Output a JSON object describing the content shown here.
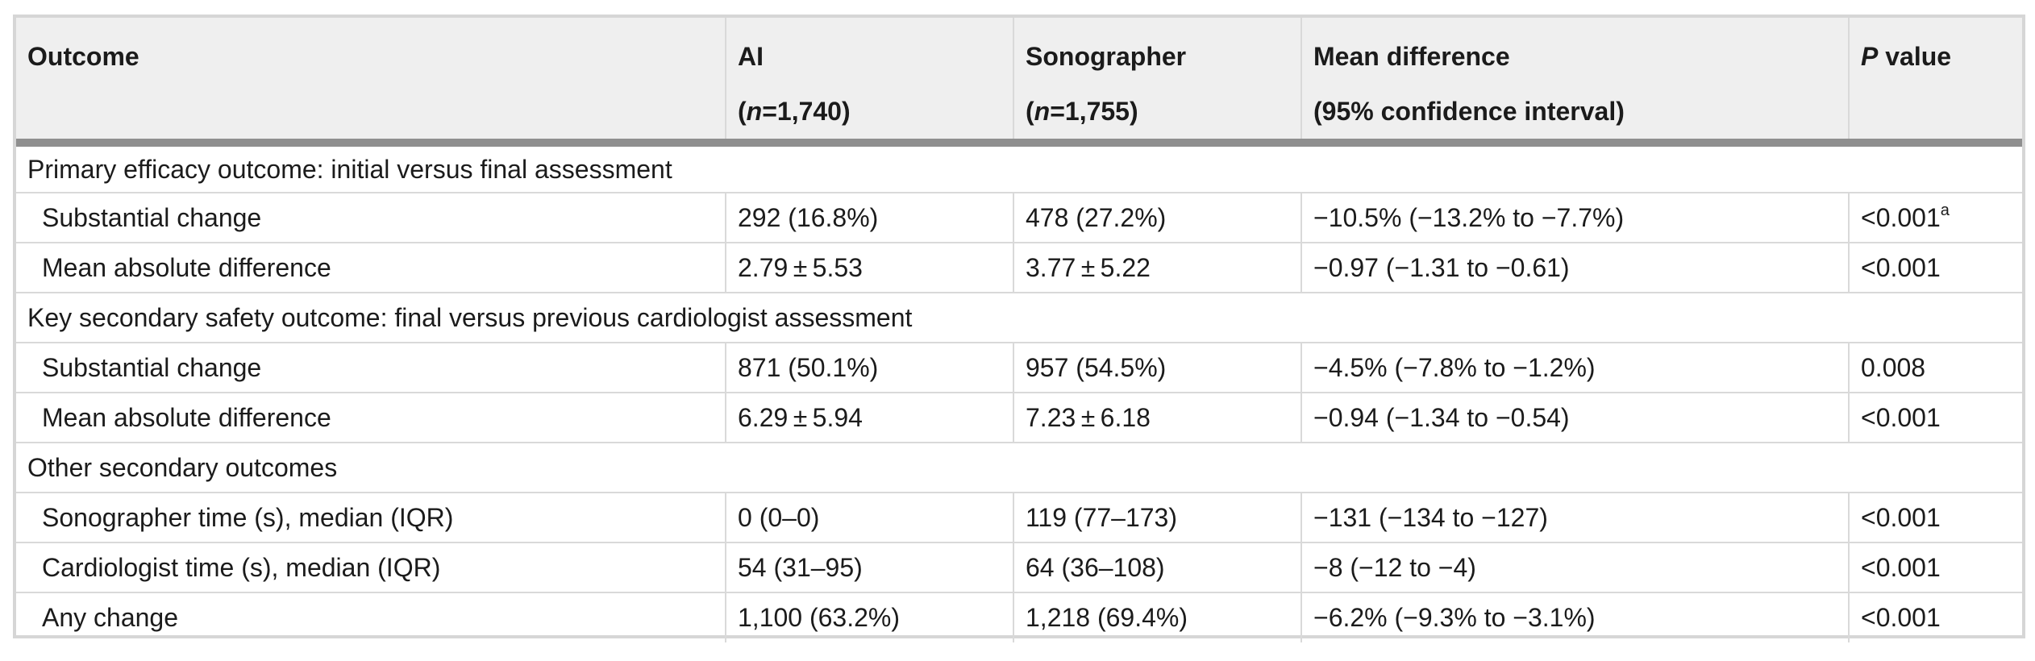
{
  "header": {
    "outcome": "Outcome",
    "ai": "AI",
    "ai_n_label": "n",
    "ai_n_value": "=1,740)",
    "sono": "Sonographer",
    "sono_n_label": "n",
    "sono_n_value": "=1,755)",
    "mean_diff": "Mean difference",
    "ci": "(95% confidence interval)",
    "p_italic": "P",
    "p_rest": " value"
  },
  "sections": [
    {
      "title": "Primary efficacy outcome: initial versus final assessment",
      "rows": [
        {
          "outcome": "Substantial change",
          "ai": "292 (16.8%)",
          "sono": "478 (27.2%)",
          "diff": "−10.5% (−13.2% to −7.7%)",
          "p": "<0.001",
          "p_sup": "a"
        },
        {
          "outcome": "Mean absolute difference",
          "ai": "2.79 ± 5.53",
          "sono": "3.77 ± 5.22",
          "diff": "−0.97 (−1.31 to −0.61)",
          "p": "<0.001"
        }
      ]
    },
    {
      "title": "Key secondary safety outcome: final versus previous cardiologist assessment",
      "rows": [
        {
          "outcome": "Substantial change",
          "ai": "871 (50.1%)",
          "sono": "957 (54.5%)",
          "diff": "−4.5% (−7.8% to −1.2%)",
          "p": "0.008"
        },
        {
          "outcome": "Mean absolute difference",
          "ai": "6.29 ± 5.94",
          "sono": "7.23 ± 6.18",
          "diff": "−0.94 (−1.34 to −0.54)",
          "p": "<0.001"
        }
      ]
    },
    {
      "title": "Other secondary outcomes",
      "rows": [
        {
          "outcome": "Sonographer time (s), median (IQR)",
          "ai": "0 (0–0)",
          "sono": "119 (77–173)",
          "diff": "−131 (−134 to −127)",
          "p": "<0.001"
        },
        {
          "outcome": "Cardiologist time (s), median (IQR)",
          "ai": "54 (31–95)",
          "sono": "64 (36–108)",
          "diff": "−8 (−12 to −4)",
          "p": "<0.001"
        },
        {
          "outcome": "Any change",
          "ai": "1,100 (63.2%)",
          "sono": "1,218 (69.4%)",
          "diff": "−6.2% (−9.3% to −3.1%)",
          "p": "<0.001"
        }
      ]
    }
  ]
}
